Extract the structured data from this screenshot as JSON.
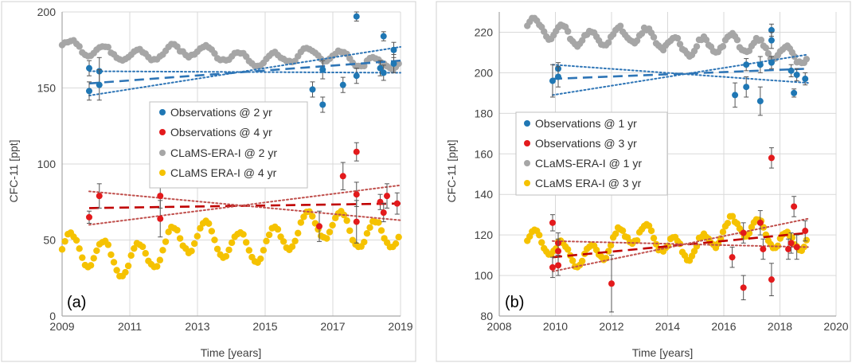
{
  "colors": {
    "obs_blue": "#1f77b4",
    "obs_red": "#e31a1c",
    "clams_gray": "#a6a6a6",
    "clams_yellow": "#f5c200",
    "trend_blue": "#2e75b6",
    "trend_red": "#c00000",
    "conf_red": "#c0504d",
    "grid": "#d9d9d9",
    "axis": "#a6a6a6"
  },
  "chart_data": [
    {
      "type": "scatter",
      "panel_label": "(a)",
      "xlabel": "Time [years]",
      "ylabel": "CFC-11 [ppt]",
      "xlim": [
        2009,
        2019
      ],
      "ylim": [
        0,
        200
      ],
      "xticks": [
        2009,
        2011,
        2013,
        2015,
        2017,
        2019
      ],
      "yticks": [
        0,
        50,
        100,
        150,
        200
      ],
      "grid": true,
      "legend_position": "center",
      "series": [
        {
          "name": "Observations @ 2 yr",
          "color": "#1f77b4",
          "marker": "circle-errorbar",
          "points": [
            {
              "x": 2009.8,
              "y": 163,
              "err": 5
            },
            {
              "x": 2009.8,
              "y": 148,
              "err": 6
            },
            {
              "x": 2010.1,
              "y": 161,
              "err": 9
            },
            {
              "x": 2010.1,
              "y": 152,
              "err": 10
            },
            {
              "x": 2016.4,
              "y": 149,
              "err": 5
            },
            {
              "x": 2016.7,
              "y": 139,
              "err": 5
            },
            {
              "x": 2016.7,
              "y": 162,
              "err": 6
            },
            {
              "x": 2017.3,
              "y": 152,
              "err": 5
            },
            {
              "x": 2017.7,
              "y": 197,
              "err": 3
            },
            {
              "x": 2017.7,
              "y": 158,
              "err": 5
            },
            {
              "x": 2018.4,
              "y": 163,
              "err": 5
            },
            {
              "x": 2018.5,
              "y": 160,
              "err": 5
            },
            {
              "x": 2018.5,
              "y": 184,
              "err": 3
            },
            {
              "x": 2018.8,
              "y": 166,
              "err": 6
            },
            {
              "x": 2018.8,
              "y": 175,
              "err": 5
            }
          ]
        },
        {
          "name": "Observations @ 4 yr",
          "color": "#e31a1c",
          "marker": "circle-errorbar",
          "points": [
            {
              "x": 2009.8,
              "y": 65,
              "err": 4
            },
            {
              "x": 2010.1,
              "y": 79,
              "err": 8
            },
            {
              "x": 2011.9,
              "y": 79,
              "err": 8
            },
            {
              "x": 2011.9,
              "y": 64,
              "err": 12
            },
            {
              "x": 2016.6,
              "y": 59,
              "err": 10
            },
            {
              "x": 2017.3,
              "y": 92,
              "err": 9
            },
            {
              "x": 2017.7,
              "y": 108,
              "err": 6
            },
            {
              "x": 2017.7,
              "y": 80,
              "err": 8
            },
            {
              "x": 2017.7,
              "y": 62,
              "err": 14
            },
            {
              "x": 2018.4,
              "y": 75,
              "err": 5
            },
            {
              "x": 2018.5,
              "y": 68,
              "err": 6
            },
            {
              "x": 2018.6,
              "y": 79,
              "err": 8
            },
            {
              "x": 2018.9,
              "y": 74,
              "err": 7
            }
          ]
        },
        {
          "name": "CLaMS-ERA-I @ 2 yr",
          "color": "#a6a6a6",
          "marker": "circle",
          "model": {
            "start": 2009.0,
            "end": 2019.0,
            "step": 0.085,
            "base": 175.0,
            "slope": -0.7,
            "amp": 4.0,
            "amp2": 2.5
          }
        },
        {
          "name": "CLaMS ERA-I @ 4 yr",
          "color": "#f5c200",
          "marker": "circle",
          "model": {
            "start": 2009.0,
            "end": 2019.0,
            "step": 0.085,
            "base": 38.0,
            "slope": 2.2,
            "amp": 10.0,
            "amp2": 6.0
          }
        }
      ],
      "trend_lines": [
        {
          "color": "#2e75b6",
          "style": "dashed",
          "x": [
            2009.8,
            2019.0
          ],
          "y": [
            153,
            168
          ]
        },
        {
          "color": "#2e75b6",
          "style": "dotted",
          "x": [
            2009.8,
            2019.0
          ],
          "y": [
            145,
            177
          ]
        },
        {
          "color": "#2e75b6",
          "style": "dotted",
          "x": [
            2009.8,
            2019.0
          ],
          "y": [
            161,
            160
          ]
        },
        {
          "color": "#c00000",
          "style": "dashed",
          "x": [
            2009.8,
            2019.0
          ],
          "y": [
            71,
            74
          ]
        },
        {
          "color": "#c0504d",
          "style": "dotted",
          "x": [
            2009.8,
            2019.0
          ],
          "y": [
            60,
            86
          ]
        },
        {
          "color": "#c0504d",
          "style": "dotted",
          "x": [
            2009.8,
            2019.0
          ],
          "y": [
            82,
            63
          ]
        }
      ]
    },
    {
      "type": "scatter",
      "panel_label": "(b)",
      "xlabel": "Time [years]",
      "ylabel": "CFC-11 [ppt]",
      "xlim": [
        2008,
        2020
      ],
      "ylim": [
        80,
        230
      ],
      "xticks": [
        2008,
        2010,
        2012,
        2014,
        2016,
        2018,
        2020
      ],
      "yticks": [
        80,
        100,
        120,
        140,
        160,
        180,
        200,
        220
      ],
      "grid": true,
      "legend_position": "center-left",
      "series": [
        {
          "name": "Observations @ 1 yr",
          "color": "#1f77b4",
          "marker": "circle-errorbar",
          "points": [
            {
              "x": 2009.9,
              "y": 196,
              "err": 8
            },
            {
              "x": 2010.1,
              "y": 202,
              "err": 3
            },
            {
              "x": 2010.1,
              "y": 198,
              "err": 5
            },
            {
              "x": 2016.4,
              "y": 189,
              "err": 6
            },
            {
              "x": 2016.8,
              "y": 193,
              "err": 5
            },
            {
              "x": 2016.8,
              "y": 204,
              "err": 3
            },
            {
              "x": 2017.3,
              "y": 186,
              "err": 7
            },
            {
              "x": 2017.3,
              "y": 204,
              "err": 4
            },
            {
              "x": 2017.7,
              "y": 221,
              "err": 3
            },
            {
              "x": 2017.7,
              "y": 216,
              "err": 4
            },
            {
              "x": 2017.7,
              "y": 205,
              "err": 3
            },
            {
              "x": 2018.4,
              "y": 201,
              "err": 3
            },
            {
              "x": 2018.5,
              "y": 190,
              "err": 2
            },
            {
              "x": 2018.6,
              "y": 199,
              "err": 3
            },
            {
              "x": 2018.9,
              "y": 197,
              "err": 3
            }
          ]
        },
        {
          "name": "Observations @ 3 yr",
          "color": "#e31a1c",
          "marker": "circle-errorbar",
          "points": [
            {
              "x": 2009.9,
              "y": 126,
              "err": 4
            },
            {
              "x": 2009.9,
              "y": 104,
              "err": 5
            },
            {
              "x": 2010.1,
              "y": 116,
              "err": 5
            },
            {
              "x": 2010.1,
              "y": 112,
              "err": 6
            },
            {
              "x": 2010.1,
              "y": 105,
              "err": 5
            },
            {
              "x": 2012.0,
              "y": 96,
              "err": 14
            },
            {
              "x": 2016.3,
              "y": 109,
              "err": 5
            },
            {
              "x": 2016.7,
              "y": 121,
              "err": 5
            },
            {
              "x": 2016.7,
              "y": 94,
              "err": 6
            },
            {
              "x": 2017.3,
              "y": 126,
              "err": 6
            },
            {
              "x": 2017.4,
              "y": 113,
              "err": 5
            },
            {
              "x": 2017.7,
              "y": 158,
              "err": 5
            },
            {
              "x": 2017.7,
              "y": 98,
              "err": 8
            },
            {
              "x": 2018.3,
              "y": 113,
              "err": 5
            },
            {
              "x": 2018.4,
              "y": 116,
              "err": 5
            },
            {
              "x": 2018.5,
              "y": 134,
              "err": 5
            },
            {
              "x": 2018.6,
              "y": 114,
              "err": 6
            },
            {
              "x": 2018.9,
              "y": 122,
              "err": 5
            }
          ]
        },
        {
          "name": "CLaMS-ERA-I @ 1 yr",
          "color": "#a6a6a6",
          "marker": "circle",
          "model": {
            "start": 2009.0,
            "end": 2019.0,
            "step": 0.085,
            "base": 221.0,
            "slope": -1.1,
            "amp": 4.0,
            "amp2": 2.0
          }
        },
        {
          "name": "CLaMS ERA-I @ 3 yr",
          "color": "#f5c200",
          "marker": "circle",
          "model": {
            "start": 2009.0,
            "end": 2019.0,
            "step": 0.085,
            "base": 112.0,
            "slope": 1.0,
            "amp": 5.0,
            "amp2": 5.0
          }
        }
      ],
      "trend_lines": [
        {
          "color": "#2e75b6",
          "style": "dashed",
          "x": [
            2009.9,
            2019.0
          ],
          "y": [
            197,
            202
          ]
        },
        {
          "color": "#2e75b6",
          "style": "dotted",
          "x": [
            2009.9,
            2019.0
          ],
          "y": [
            189,
            209
          ]
        },
        {
          "color": "#2e75b6",
          "style": "dotted",
          "x": [
            2009.9,
            2019.0
          ],
          "y": [
            204,
            195
          ]
        },
        {
          "color": "#c00000",
          "style": "dashed",
          "x": [
            2009.9,
            2019.0
          ],
          "y": [
            109,
            121
          ]
        },
        {
          "color": "#c0504d",
          "style": "dotted",
          "x": [
            2009.9,
            2019.0
          ],
          "y": [
            102,
            128
          ]
        },
        {
          "color": "#c0504d",
          "style": "dotted",
          "x": [
            2009.9,
            2019.0
          ],
          "y": [
            117,
            114
          ]
        }
      ]
    }
  ]
}
